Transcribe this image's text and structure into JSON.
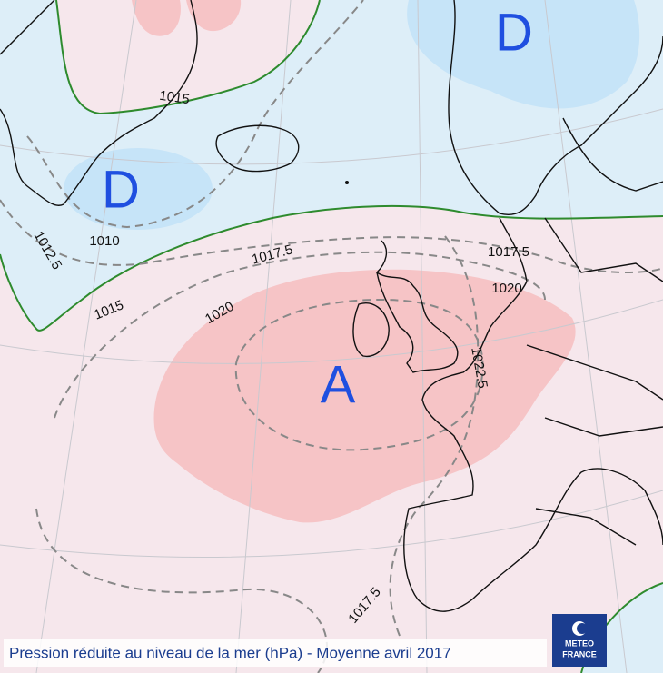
{
  "pressure_centers": [
    {
      "label": "D"
    },
    {
      "label": "D"
    },
    {
      "label": "A"
    }
  ],
  "isobar_labels": [
    "1015",
    "1010",
    "1012.5",
    "1015",
    "1017.5",
    "1020",
    "1017.5",
    "1020",
    "1022.5",
    "1017.5"
  ],
  "caption": "Pression réduite au niveau de la mer (hPa) - Moyenne avril 2017",
  "logo": {
    "line1": "METEO",
    "line2": "FRANCE"
  }
}
